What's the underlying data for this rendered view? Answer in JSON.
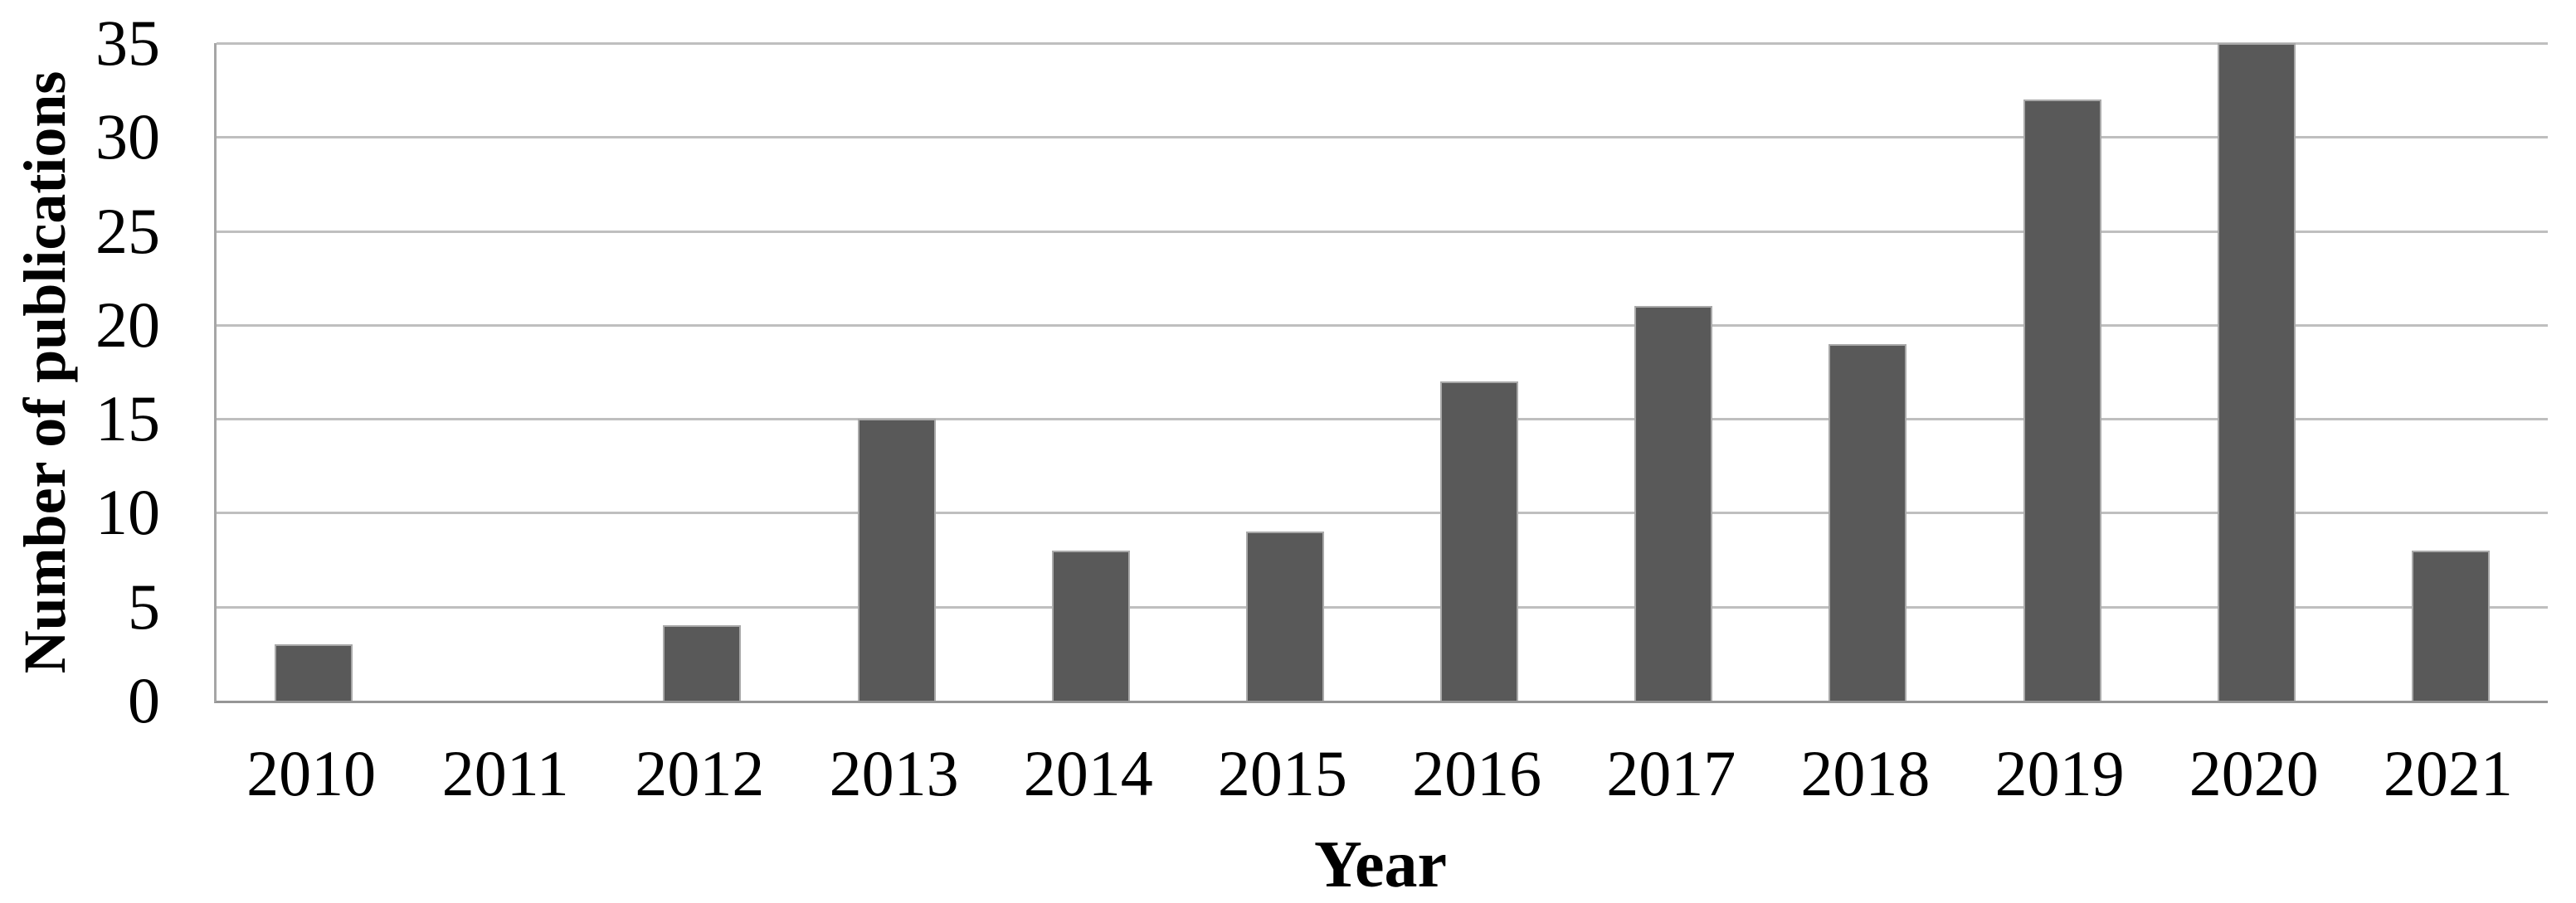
{
  "chart_data": {
    "type": "bar",
    "title": "",
    "categories": [
      "2010",
      "2011",
      "2012",
      "2013",
      "2014",
      "2015",
      "2016",
      "2017",
      "2018",
      "2019",
      "2020",
      "2021"
    ],
    "values": [
      3,
      0,
      4,
      15,
      8,
      9,
      17,
      21,
      19,
      32,
      35,
      8
    ],
    "xlabel": "Year",
    "ylabel": "Number of publications",
    "ylim": [
      0,
      35
    ],
    "yticks": [
      0,
      5,
      10,
      15,
      20,
      25,
      30,
      35
    ],
    "grid": "horizontal",
    "legend": "none",
    "bar_color": "#595959",
    "bar_border_color": "#a9a9a9",
    "gridline_color": "#bfbfbf",
    "axis_line_color": "#a6a6a6",
    "text_color": "#000000",
    "background_color": "#ffffff"
  }
}
